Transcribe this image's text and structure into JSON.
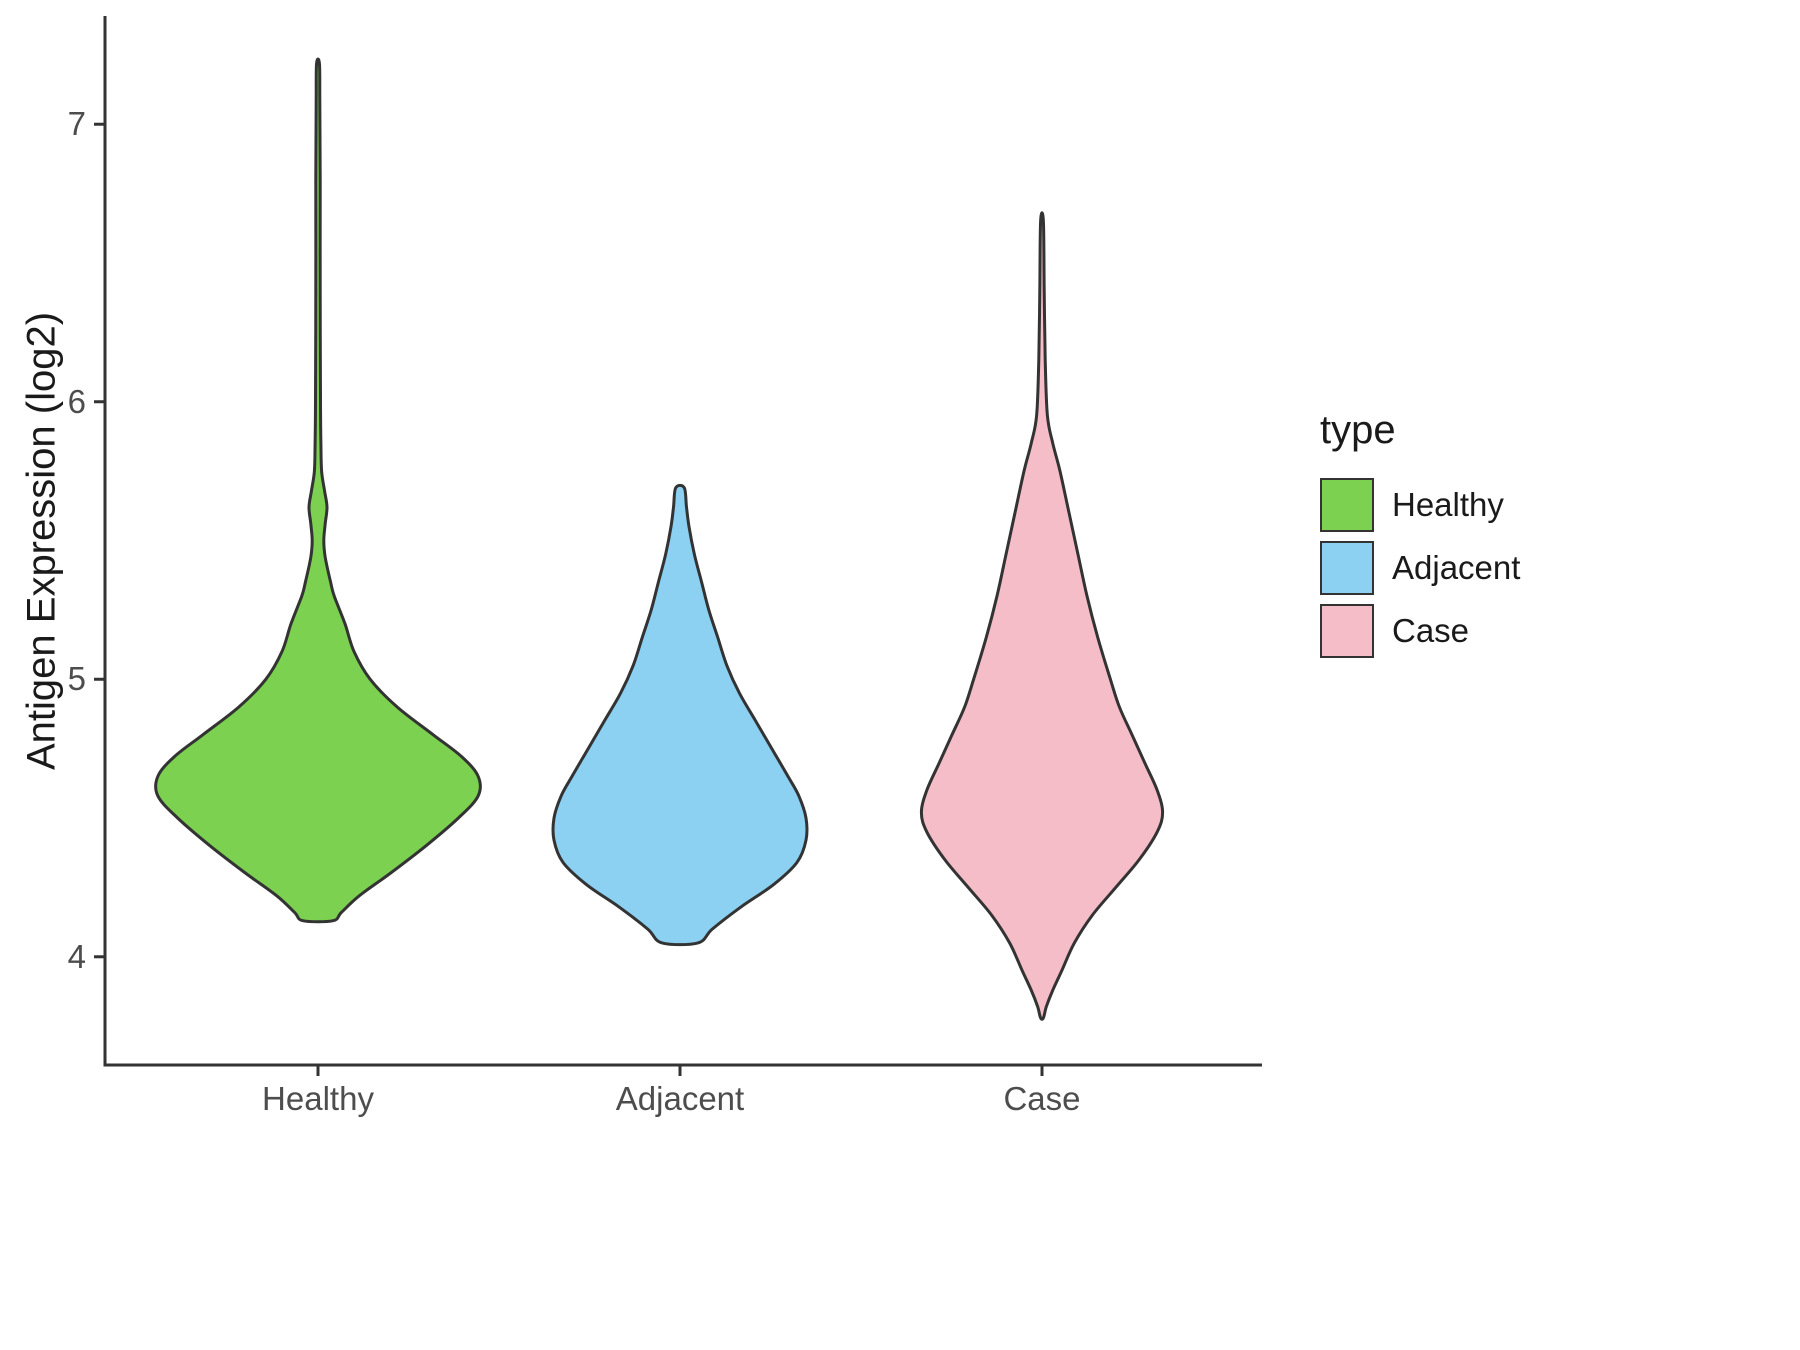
{
  "chart_data": {
    "type": "violin",
    "title": "",
    "xlabel": "",
    "ylabel": "Antigen Expression (log2)",
    "categories": [
      "Healthy",
      "Adjacent",
      "Case"
    ],
    "yticks": [
      4,
      5,
      6,
      7
    ],
    "ylim": [
      3.61,
      7.39
    ],
    "grid": false,
    "background": "#FFFFFF",
    "axis_color": "#333333",
    "outline_color": "#333333",
    "tick_label_color": "#4d4d4d",
    "legend": {
      "title": "type",
      "position": "right",
      "entries": [
        {
          "label": "Healthy",
          "color": "#7CD250"
        },
        {
          "label": "Adjacent",
          "color": "#8CD0F2"
        },
        {
          "label": "Case",
          "color": "#F5BDC8"
        }
      ]
    },
    "series": [
      {
        "name": "Healthy",
        "color": "#7CD250",
        "y_max": 7.22,
        "y_min": 4.13,
        "peak_density_at": 4.62,
        "profile": [
          [
            7.22,
            0.004
          ],
          [
            7.1,
            0.005
          ],
          [
            6.8,
            0.006
          ],
          [
            6.4,
            0.006
          ],
          [
            6.0,
            0.007
          ],
          [
            5.85,
            0.008
          ],
          [
            5.75,
            0.01
          ],
          [
            5.68,
            0.018
          ],
          [
            5.62,
            0.025
          ],
          [
            5.56,
            0.02
          ],
          [
            5.5,
            0.016
          ],
          [
            5.44,
            0.02
          ],
          [
            5.35,
            0.035
          ],
          [
            5.3,
            0.045
          ],
          [
            5.2,
            0.075
          ],
          [
            5.1,
            0.1
          ],
          [
            5.0,
            0.145
          ],
          [
            4.9,
            0.22
          ],
          [
            4.8,
            0.32
          ],
          [
            4.72,
            0.4
          ],
          [
            4.65,
            0.445
          ],
          [
            4.58,
            0.445
          ],
          [
            4.5,
            0.39
          ],
          [
            4.4,
            0.3
          ],
          [
            4.3,
            0.2
          ],
          [
            4.22,
            0.115
          ],
          [
            4.16,
            0.065
          ],
          [
            4.13,
            0.042
          ]
        ]
      },
      {
        "name": "Adjacent",
        "color": "#8CD0F2",
        "y_max": 5.69,
        "y_min": 4.05,
        "peak_density_at": 4.46,
        "profile": [
          [
            5.69,
            0.012
          ],
          [
            5.62,
            0.018
          ],
          [
            5.55,
            0.025
          ],
          [
            5.45,
            0.04
          ],
          [
            5.35,
            0.06
          ],
          [
            5.25,
            0.08
          ],
          [
            5.15,
            0.105
          ],
          [
            5.05,
            0.13
          ],
          [
            4.95,
            0.165
          ],
          [
            4.85,
            0.21
          ],
          [
            4.75,
            0.255
          ],
          [
            4.65,
            0.3
          ],
          [
            4.58,
            0.33
          ],
          [
            4.5,
            0.35
          ],
          [
            4.42,
            0.35
          ],
          [
            4.34,
            0.325
          ],
          [
            4.26,
            0.26
          ],
          [
            4.18,
            0.17
          ],
          [
            4.1,
            0.09
          ],
          [
            4.05,
            0.05
          ]
        ]
      },
      {
        "name": "Case",
        "color": "#F5BDC8",
        "y_max": 6.65,
        "y_min": 3.78,
        "peak_density_at": 4.52,
        "profile": [
          [
            6.65,
            0.004
          ],
          [
            6.4,
            0.006
          ],
          [
            6.15,
            0.009
          ],
          [
            5.95,
            0.015
          ],
          [
            5.85,
            0.03
          ],
          [
            5.75,
            0.05
          ],
          [
            5.6,
            0.075
          ],
          [
            5.45,
            0.1
          ],
          [
            5.3,
            0.125
          ],
          [
            5.15,
            0.155
          ],
          [
            5.0,
            0.19
          ],
          [
            4.9,
            0.215
          ],
          [
            4.8,
            0.25
          ],
          [
            4.7,
            0.285
          ],
          [
            4.6,
            0.32
          ],
          [
            4.52,
            0.335
          ],
          [
            4.45,
            0.32
          ],
          [
            4.35,
            0.27
          ],
          [
            4.25,
            0.205
          ],
          [
            4.15,
            0.14
          ],
          [
            4.05,
            0.09
          ],
          [
            3.95,
            0.055
          ],
          [
            3.88,
            0.03
          ],
          [
            3.82,
            0.012
          ],
          [
            3.78,
            0.004
          ]
        ]
      }
    ]
  }
}
